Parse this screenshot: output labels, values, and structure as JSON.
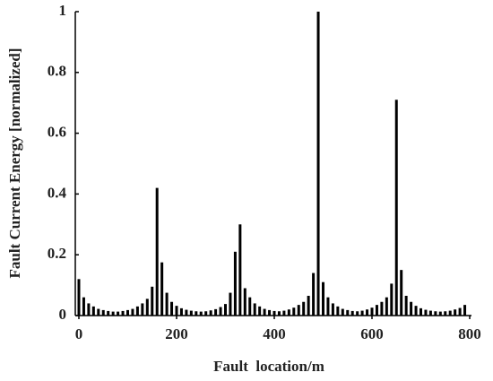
{
  "chart_data": {
    "type": "bar",
    "xlabel": "Fault  location/m",
    "ylabel": "Fault Current Energy [normalized]",
    "x": [
      0,
      10,
      20,
      30,
      40,
      50,
      60,
      70,
      80,
      90,
      100,
      110,
      120,
      130,
      140,
      150,
      160,
      170,
      180,
      190,
      200,
      210,
      220,
      230,
      240,
      250,
      260,
      270,
      280,
      290,
      300,
      310,
      320,
      330,
      340,
      350,
      360,
      370,
      380,
      390,
      400,
      410,
      420,
      430,
      440,
      450,
      460,
      470,
      480,
      490,
      500,
      510,
      520,
      530,
      540,
      550,
      560,
      570,
      580,
      590,
      600,
      610,
      620,
      630,
      640,
      650,
      660,
      670,
      680,
      690,
      700,
      710,
      720,
      730,
      740,
      750,
      760,
      770,
      780,
      790
    ],
    "values": [
      0.12,
      0.06,
      0.04,
      0.03,
      0.022,
      0.018,
      0.015,
      0.013,
      0.013,
      0.015,
      0.018,
      0.022,
      0.03,
      0.04,
      0.055,
      0.095,
      0.42,
      0.175,
      0.075,
      0.045,
      0.032,
      0.024,
      0.019,
      0.016,
      0.014,
      0.013,
      0.014,
      0.017,
      0.021,
      0.028,
      0.038,
      0.075,
      0.21,
      0.3,
      0.09,
      0.06,
      0.04,
      0.03,
      0.022,
      0.018,
      0.015,
      0.014,
      0.016,
      0.02,
      0.026,
      0.035,
      0.045,
      0.065,
      0.14,
      1,
      0.11,
      0.06,
      0.04,
      0.03,
      0.022,
      0.018,
      0.015,
      0.014,
      0.016,
      0.02,
      0.026,
      0.035,
      0.045,
      0.06,
      0.105,
      0.71,
      0.15,
      0.065,
      0.045,
      0.032,
      0.024,
      0.019,
      0.016,
      0.014,
      0.013,
      0.014,
      0.016,
      0.02,
      0.025,
      0.035
    ],
    "color": "#000000",
    "xlim": [
      0,
      800
    ],
    "xticks": [
      0,
      200,
      400,
      600,
      800
    ],
    "ylim": [
      0,
      1
    ],
    "yticks": [
      0,
      0.2,
      0.4,
      0.6,
      0.8,
      1
    ],
    "grid": false
  }
}
